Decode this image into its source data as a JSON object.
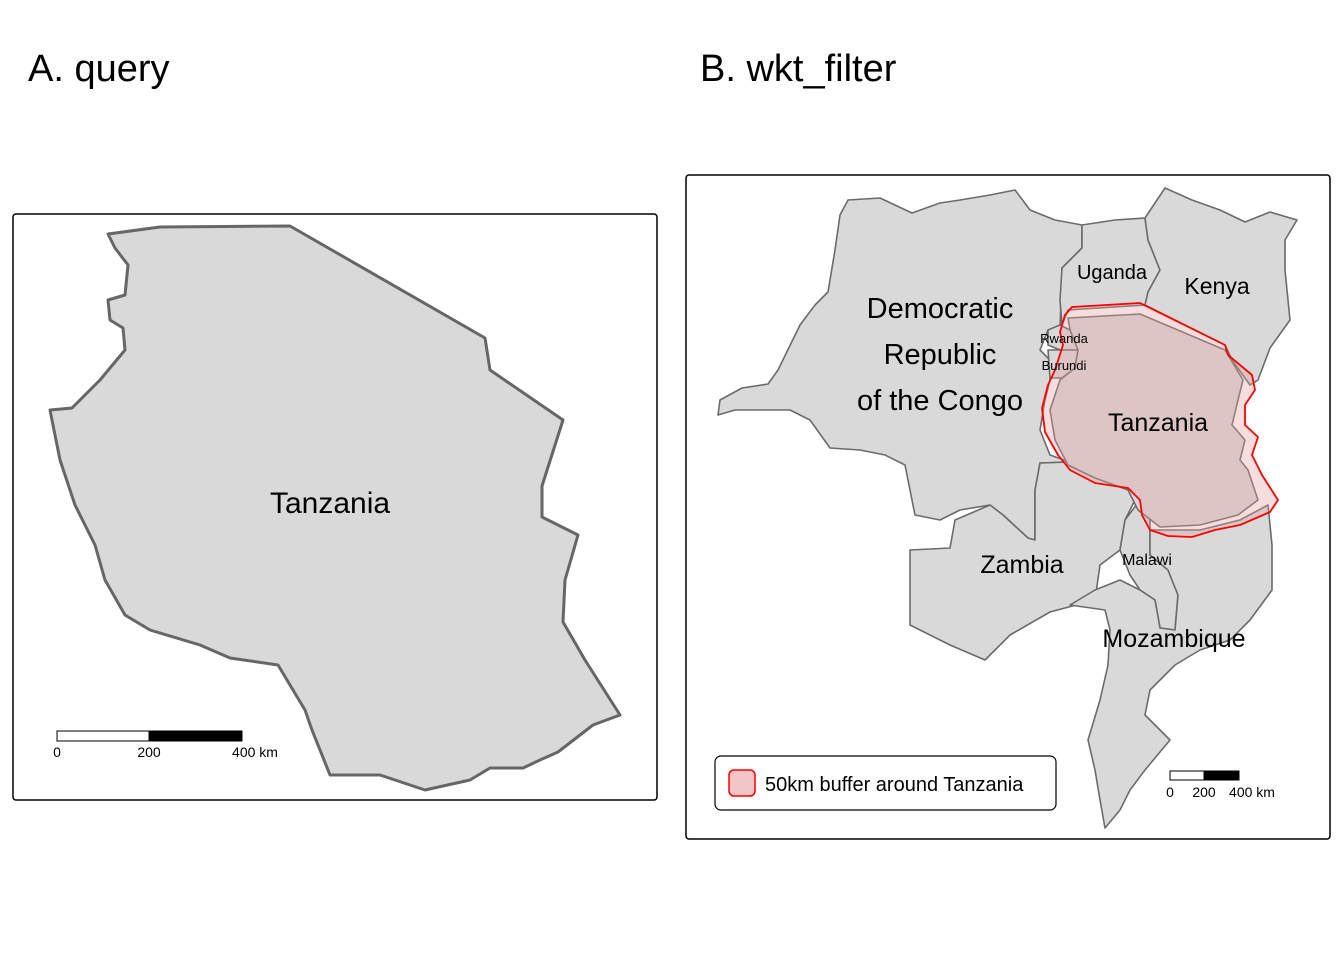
{
  "panel_a": {
    "title": "A. query",
    "country_label": "Tanzania",
    "scale": {
      "ticks": [
        "0",
        "200",
        "400 km"
      ]
    }
  },
  "panel_b": {
    "title": "B. wkt_filter",
    "labels": {
      "drc_line1": "Democratic",
      "drc_line2": "Republic",
      "drc_line3": "of the Congo",
      "uganda": "Uganda",
      "kenya": "Kenya",
      "rwanda": "Rwanda",
      "burundi": "Burundi",
      "tanzania": "Tanzania",
      "zambia": "Zambia",
      "malawi": "Malawi",
      "mozambique": "Mozambique"
    },
    "legend": {
      "label": "50km buffer around Tanzania",
      "swatch_fill": "#f2c6c6",
      "swatch_stroke": "#ff0000"
    },
    "scale": {
      "ticks": [
        "0",
        "200",
        "400 km"
      ]
    }
  },
  "colors": {
    "country_fill": "#d9d9d9",
    "border": "#666666",
    "buffer_stroke": "#ff0000"
  }
}
